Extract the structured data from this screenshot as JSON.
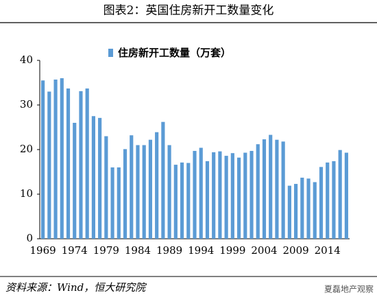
{
  "header": {
    "title": "图表2：英国住房新开工数量变化"
  },
  "chart_data": {
    "type": "bar",
    "series_name": "住房新开工数量（万套）",
    "categories": [
      "1969",
      null,
      null,
      null,
      null,
      "1974",
      null,
      null,
      null,
      null,
      "1979",
      null,
      null,
      null,
      null,
      "1984",
      null,
      null,
      null,
      null,
      "1989",
      null,
      null,
      null,
      null,
      "1994",
      null,
      null,
      null,
      null,
      "1999",
      null,
      null,
      null,
      null,
      "2004",
      null,
      null,
      null,
      null,
      "2009",
      null,
      null,
      null,
      null,
      "2014",
      null,
      null,
      null
    ],
    "values": [
      35.5,
      33,
      35.7,
      36,
      33.7,
      26,
      33.1,
      33.7,
      27.5,
      27.1,
      23,
      16,
      16,
      20.1,
      23.2,
      21,
      21,
      22.2,
      23.9,
      26.2,
      21,
      16.6,
      17.1,
      17,
      19.7,
      20.4,
      17.4,
      19.4,
      19.6,
      18.6,
      19.2,
      18.2,
      19.3,
      19.7,
      21.2,
      22.3,
      23.3,
      22.2,
      21.8,
      11.9,
      12.3,
      13.7,
      13.5,
      12.7,
      16.1,
      17.1,
      17.4,
      19.9,
      19.3
    ],
    "color": "#5b9bd5",
    "ylim": [
      0,
      40
    ],
    "yticks": [
      0,
      10,
      20,
      30,
      40
    ],
    "grid": false
  },
  "footer": {
    "source": "资料来源：Wind，恒大研究院",
    "watermark": "夏磊地产观察"
  }
}
